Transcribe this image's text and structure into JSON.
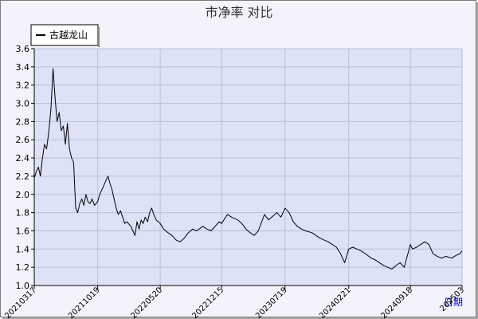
{
  "chart_data": {
    "type": "line",
    "title": "市净率 对比",
    "xlabel": "日期",
    "ylabel": "",
    "ylim": [
      1.0,
      3.6
    ],
    "yticks": [
      1.0,
      1.2,
      1.4,
      1.6,
      1.8,
      2.0,
      2.2,
      2.4,
      2.6,
      2.8,
      3.0,
      3.2,
      3.4,
      3.6
    ],
    "ytick_labels": [
      "1.0",
      "1.2",
      "1.4",
      "1.6",
      "1.8",
      "2.0",
      "2.2",
      "2.4",
      "2.6",
      "2.8",
      "3.0",
      "3.2",
      "3.4",
      "3.6"
    ],
    "xlim": [
      "2021-03-17",
      "2025-03-13"
    ],
    "xticks": [
      "2021-03-17",
      "2021-10-19",
      "2022-05-20",
      "2022-12-15",
      "2023-07-19",
      "2024-02-21",
      "2024-09-18",
      "2025-03-13"
    ],
    "xtick_labels": [
      "20210317",
      "20211019",
      "20220520",
      "20221215",
      "20230719",
      "20240221",
      "20240918",
      "202503"
    ],
    "grid": true,
    "legend_position": "top-left",
    "colors": {
      "plot_bg": "#dde2f7",
      "grid": "#b9bfd6",
      "line": "#000000",
      "axis": "#000000",
      "title": "#333333",
      "xlabel": "#0000cc"
    },
    "series": [
      {
        "name": "古越龙山",
        "x": [
          "2021-03-17",
          "2021-03-24",
          "2021-03-31",
          "2021-04-07",
          "2021-04-14",
          "2021-04-21",
          "2021-04-28",
          "2021-05-06",
          "2021-05-13",
          "2021-05-20",
          "2021-05-27",
          "2021-06-03",
          "2021-06-10",
          "2021-06-17",
          "2021-06-24",
          "2021-07-01",
          "2021-07-08",
          "2021-07-15",
          "2021-07-22",
          "2021-07-29",
          "2021-08-05",
          "2021-08-12",
          "2021-08-19",
          "2021-08-26",
          "2021-09-02",
          "2021-09-09",
          "2021-09-16",
          "2021-09-23",
          "2021-09-30",
          "2021-10-08",
          "2021-10-19",
          "2021-10-26",
          "2021-11-02",
          "2021-11-09",
          "2021-11-16",
          "2021-11-23",
          "2021-11-30",
          "2021-12-07",
          "2021-12-14",
          "2021-12-21",
          "2021-12-28",
          "2022-01-05",
          "2022-01-12",
          "2022-01-19",
          "2022-01-26",
          "2022-02-09",
          "2022-02-16",
          "2022-02-23",
          "2022-03-02",
          "2022-03-09",
          "2022-03-16",
          "2022-03-23",
          "2022-03-30",
          "2022-04-07",
          "2022-04-14",
          "2022-04-21",
          "2022-04-28",
          "2022-05-06",
          "2022-05-13",
          "2022-05-20",
          "2022-06-01",
          "2022-06-15",
          "2022-06-29",
          "2022-07-13",
          "2022-07-27",
          "2022-08-10",
          "2022-08-24",
          "2022-09-07",
          "2022-09-21",
          "2022-10-12",
          "2022-10-26",
          "2022-11-09",
          "2022-11-23",
          "2022-12-07",
          "2022-12-15",
          "2023-01-04",
          "2023-01-18",
          "2023-02-08",
          "2023-02-22",
          "2023-03-08",
          "2023-03-22",
          "2023-04-05",
          "2023-04-19",
          "2023-05-10",
          "2023-05-24",
          "2023-06-07",
          "2023-06-21",
          "2023-07-05",
          "2023-07-19",
          "2023-08-02",
          "2023-08-16",
          "2023-08-30",
          "2023-09-13",
          "2023-09-27",
          "2023-10-18",
          "2023-11-01",
          "2023-11-15",
          "2023-11-29",
          "2023-12-13",
          "2023-12-27",
          "2024-01-10",
          "2024-01-24",
          "2024-02-07",
          "2024-02-21",
          "2024-03-06",
          "2024-03-20",
          "2024-04-03",
          "2024-04-17",
          "2024-05-08",
          "2024-05-22",
          "2024-06-05",
          "2024-06-19",
          "2024-07-03",
          "2024-07-17",
          "2024-07-31",
          "2024-08-14",
          "2024-08-28",
          "2024-09-18",
          "2024-09-25",
          "2024-10-09",
          "2024-10-23",
          "2024-11-06",
          "2024-11-20",
          "2024-12-04",
          "2024-12-18",
          "2025-01-02",
          "2025-01-16",
          "2025-02-06",
          "2025-02-20",
          "2025-03-06",
          "2025-03-13"
        ],
        "values": [
          2.18,
          2.25,
          2.3,
          2.2,
          2.4,
          2.55,
          2.5,
          2.7,
          2.95,
          3.38,
          3.05,
          2.8,
          2.9,
          2.7,
          2.75,
          2.55,
          2.78,
          2.5,
          2.4,
          2.35,
          1.85,
          1.8,
          1.9,
          1.95,
          1.88,
          2.0,
          1.92,
          1.9,
          1.95,
          1.88,
          1.92,
          2.0,
          2.05,
          2.1,
          2.15,
          2.2,
          2.12,
          2.05,
          1.95,
          1.85,
          1.78,
          1.82,
          1.75,
          1.68,
          1.7,
          1.65,
          1.6,
          1.55,
          1.7,
          1.62,
          1.72,
          1.68,
          1.75,
          1.7,
          1.8,
          1.85,
          1.78,
          1.72,
          1.7,
          1.68,
          1.62,
          1.58,
          1.55,
          1.5,
          1.48,
          1.52,
          1.58,
          1.62,
          1.6,
          1.65,
          1.62,
          1.6,
          1.65,
          1.7,
          1.68,
          1.78,
          1.75,
          1.72,
          1.68,
          1.62,
          1.58,
          1.55,
          1.6,
          1.78,
          1.72,
          1.76,
          1.8,
          1.75,
          1.85,
          1.8,
          1.7,
          1.65,
          1.62,
          1.6,
          1.58,
          1.55,
          1.52,
          1.5,
          1.48,
          1.45,
          1.42,
          1.35,
          1.25,
          1.4,
          1.42,
          1.4,
          1.38,
          1.35,
          1.3,
          1.28,
          1.25,
          1.22,
          1.2,
          1.18,
          1.22,
          1.25,
          1.2,
          1.45,
          1.4,
          1.42,
          1.45,
          1.48,
          1.45,
          1.35,
          1.32,
          1.3,
          1.32,
          1.3,
          1.33,
          1.35,
          1.38
        ]
      }
    ]
  }
}
